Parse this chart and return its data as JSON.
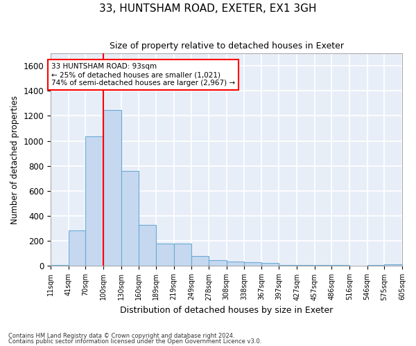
{
  "title": "33, HUNTSHAM ROAD, EXETER, EX1 3GH",
  "subtitle": "Size of property relative to detached houses in Exeter",
  "xlabel": "Distribution of detached houses by size in Exeter",
  "ylabel": "Number of detached properties",
  "bar_color": "#c5d8f0",
  "bar_edge_color": "#6aaad4",
  "bg_color": "#e8eef8",
  "grid_color": "white",
  "vline_x": 100,
  "vline_color": "red",
  "annotation_text": "33 HUNTSHAM ROAD: 93sqm\n← 25% of detached houses are smaller (1,021)\n74% of semi-detached houses are larger (2,967) →",
  "footnote1": "Contains HM Land Registry data © Crown copyright and database right 2024.",
  "footnote2": "Contains public sector information licensed under the Open Government Licence v3.0.",
  "bin_edges": [
    11,
    41,
    70,
    100,
    130,
    160,
    189,
    219,
    249,
    278,
    308,
    338,
    367,
    397,
    427,
    457,
    486,
    516,
    546,
    575,
    605
  ],
  "bin_counts": [
    10,
    285,
    1035,
    1248,
    760,
    330,
    180,
    180,
    80,
    45,
    38,
    30,
    22,
    10,
    10,
    10,
    10,
    0,
    10,
    15
  ],
  "ylim": [
    0,
    1700
  ],
  "yticks": [
    0,
    200,
    400,
    600,
    800,
    1000,
    1200,
    1400,
    1600
  ]
}
